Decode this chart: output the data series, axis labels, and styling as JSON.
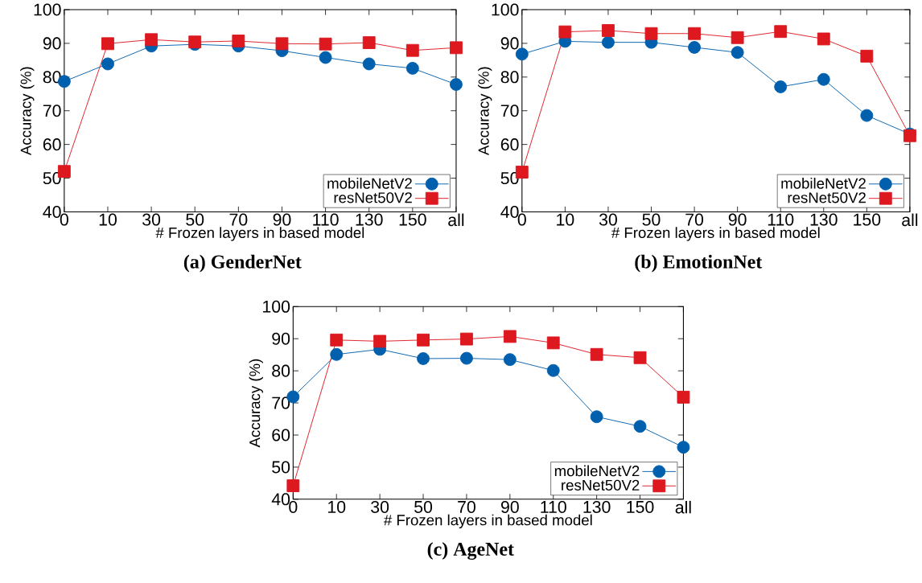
{
  "chart_data": [
    {
      "type": "line",
      "title": "(a) GenderNet",
      "xlabel": "# Frozen layers in based model",
      "ylabel": "Accuracy (%)",
      "categories": [
        "0",
        "10",
        "30",
        "50",
        "70",
        "90",
        "110",
        "130",
        "150",
        "all"
      ],
      "ylim": [
        40,
        100
      ],
      "yticks": [
        40,
        50,
        60,
        70,
        80,
        90,
        100
      ],
      "legend": "bottom right",
      "grid": false,
      "line_style": "solid",
      "series": [
        {
          "name": "mobileNetV2",
          "color": "#0060ad",
          "marker": "circle",
          "values": [
            78.7,
            83.9,
            89.2,
            89.7,
            89.2,
            87.8,
            85.8,
            83.9,
            82.6,
            77.8
          ]
        },
        {
          "name": "resNet50V2",
          "color": "#dd181f",
          "marker": "square",
          "values": [
            52.0,
            89.9,
            91.1,
            90.4,
            90.7,
            89.9,
            89.8,
            90.2,
            87.9,
            88.7
          ]
        }
      ]
    },
    {
      "type": "line",
      "title": "(b) EmotionNet",
      "xlabel": "# Frozen layers in based model",
      "ylabel": "Accuracy (%)",
      "categories": [
        "0",
        "10",
        "30",
        "50",
        "70",
        "90",
        "110",
        "130",
        "150",
        "all"
      ],
      "ylim": [
        40,
        100
      ],
      "yticks": [
        40,
        50,
        60,
        70,
        80,
        90,
        100
      ],
      "legend": "bottom right",
      "grid": false,
      "line_style": "solid",
      "series": [
        {
          "name": "mobileNetV2",
          "color": "#0060ad",
          "marker": "circle",
          "values": [
            86.8,
            90.6,
            90.3,
            90.3,
            88.8,
            87.3,
            77.1,
            79.3,
            68.6,
            63.1
          ]
        },
        {
          "name": "resNet50V2",
          "color": "#dd181f",
          "marker": "square",
          "values": [
            51.8,
            93.4,
            93.8,
            92.9,
            92.9,
            91.7,
            93.5,
            91.3,
            86.2,
            62.6
          ]
        }
      ]
    },
    {
      "type": "line",
      "title": "(c) AgeNet",
      "xlabel": "# Frozen layers in based model",
      "ylabel": "Accuracy (%)",
      "categories": [
        "0",
        "10",
        "30",
        "50",
        "70",
        "90",
        "110",
        "130",
        "150",
        "all"
      ],
      "ylim": [
        40,
        100
      ],
      "yticks": [
        40,
        50,
        60,
        70,
        80,
        90,
        100
      ],
      "legend": "bottom right",
      "grid": false,
      "line_style": "solid",
      "series": [
        {
          "name": "mobileNetV2",
          "color": "#0060ad",
          "marker": "circle",
          "values": [
            71.9,
            85.1,
            86.7,
            83.8,
            83.9,
            83.5,
            80.1,
            65.7,
            62.7,
            56.2
          ]
        },
        {
          "name": "resNet50V2",
          "color": "#dd181f",
          "marker": "square",
          "values": [
            44.2,
            89.6,
            89.2,
            89.6,
            89.9,
            90.7,
            88.7,
            85.1,
            84.1,
            71.8
          ]
        }
      ]
    }
  ]
}
